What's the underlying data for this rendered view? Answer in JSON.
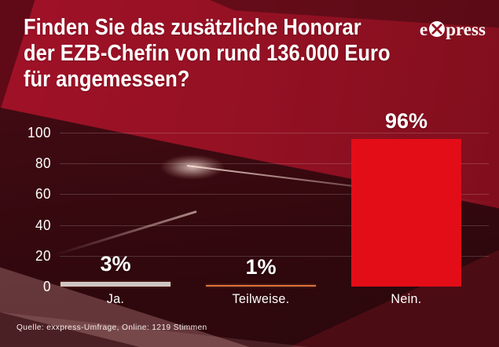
{
  "header": {
    "title_lines": [
      "Finden Sie das zusätzliche Honorar",
      "der EZB-Chefin von rund 136.000 Euro",
      "für angemessen?"
    ],
    "logo_prefix": "e",
    "logo_suffix": "press",
    "logo_symbol": "crossed-circle"
  },
  "footer": {
    "source": "Quelle:  exxpress-Umfrage, Online: 1219 Stimmen"
  },
  "colors": {
    "background_top": "#a01127",
    "background_dark": "#380a10",
    "bar_ja": "#cfc6c4",
    "bar_teilweise": "#d9713a",
    "bar_nein": "#e30d17",
    "text": "#ffffff",
    "gridline": "rgba(255,255,255,0.17)"
  },
  "chart_data": {
    "type": "bar",
    "title": "Finden Sie das zusätzliche Honorar der EZB-Chefin von rund 136.000 Euro für angemessen?",
    "categories": [
      "Ja.",
      "Teilweise.",
      "Nein."
    ],
    "values": [
      3,
      1,
      96
    ],
    "value_labels": [
      "3%",
      "1%",
      "96%"
    ],
    "bar_colors": [
      "#cfc6c4",
      "#d9713a",
      "#e30d17"
    ],
    "xlabel": "",
    "ylabel": "",
    "ylim": [
      0,
      100
    ],
    "yticks": [
      0,
      20,
      40,
      60,
      80,
      100
    ],
    "grid": true,
    "legend": false,
    "source": "Quelle: exxpress-Umfrage, Online: 1219 Stimmen"
  }
}
